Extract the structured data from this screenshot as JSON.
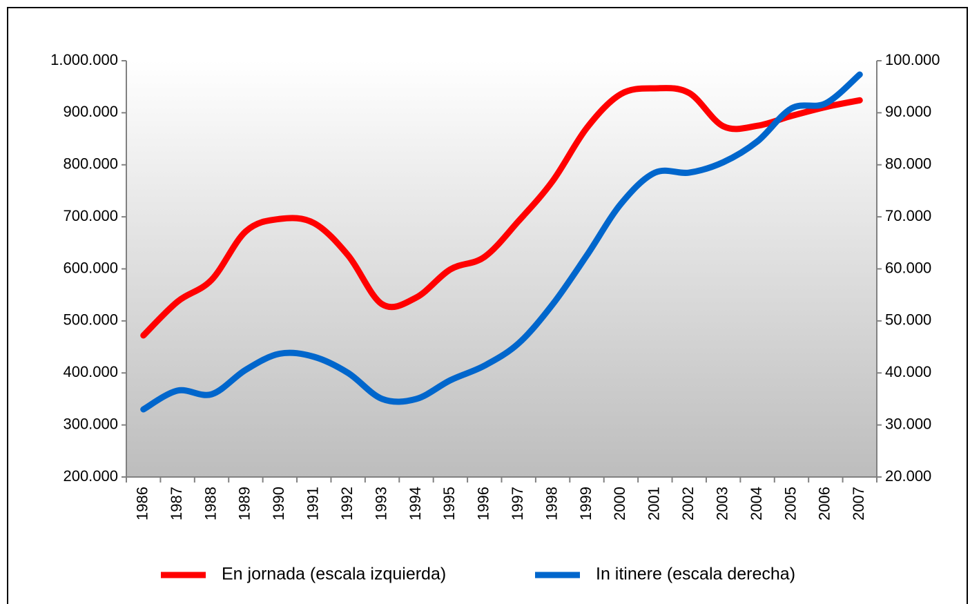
{
  "chart_data": {
    "type": "line",
    "categories": [
      "1986",
      "1987",
      "1988",
      "1989",
      "1990",
      "1991",
      "1992",
      "1993",
      "1994",
      "1995",
      "1996",
      "1997",
      "1998",
      "1999",
      "2000",
      "2001",
      "2002",
      "2003",
      "2004",
      "2005",
      "2006",
      "2007"
    ],
    "series": [
      {
        "name": "En jornada (escala izquierda)",
        "color": "#ff0000",
        "axis": "y",
        "values": [
          472000,
          537000,
          579000,
          672000,
          696000,
          688000,
          626000,
          532000,
          545000,
          599000,
          623000,
          692000,
          769000,
          871000,
          936000,
          947000,
          938000,
          874000,
          875000,
          894000,
          911000,
          924000
        ]
      },
      {
        "name": "In itinere (escala derecha)",
        "color": "#0066cc",
        "axis": "y2",
        "values": [
          33000,
          36600,
          35900,
          40600,
          43700,
          43100,
          40000,
          35000,
          35000,
          38600,
          41400,
          45700,
          53200,
          62600,
          72500,
          78500,
          78500,
          80500,
          84500,
          90850,
          91800,
          97350
        ]
      }
    ],
    "ylim": [
      200000,
      1000000
    ],
    "yticks": [
      {
        "value": 200000,
        "label": "200.000"
      },
      {
        "value": 300000,
        "label": "300.000"
      },
      {
        "value": 400000,
        "label": "400.000"
      },
      {
        "value": 500000,
        "label": "500.000"
      },
      {
        "value": 600000,
        "label": "600.000"
      },
      {
        "value": 700000,
        "label": "700.000"
      },
      {
        "value": 800000,
        "label": "800.000"
      },
      {
        "value": 900000,
        "label": "900.000"
      },
      {
        "value": 1000000,
        "label": "1.000.000"
      }
    ],
    "y2lim": [
      20000,
      100000
    ],
    "y2ticks": [
      {
        "value": 20000,
        "label": "20.000"
      },
      {
        "value": 30000,
        "label": "30.000"
      },
      {
        "value": 40000,
        "label": "40.000"
      },
      {
        "value": 50000,
        "label": "50.000"
      },
      {
        "value": 60000,
        "label": "60.000"
      },
      {
        "value": 70000,
        "label": "70.000"
      },
      {
        "value": 80000,
        "label": "80.000"
      },
      {
        "value": 90000,
        "label": "90.000"
      },
      {
        "value": 100000,
        "label": "100.000"
      }
    ],
    "legend": "bottom",
    "smooth": true
  }
}
